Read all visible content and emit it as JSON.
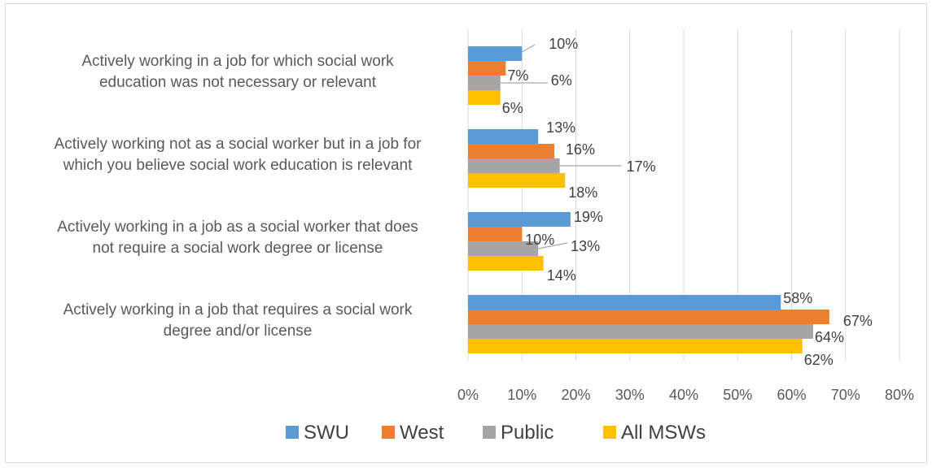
{
  "chart_data": {
    "type": "bar",
    "orientation": "horizontal",
    "categories": [
      [
        "Actively working in a job for which social work",
        "education was not necessary or relevant"
      ],
      [
        "Actively working not as a social worker but in a job for",
        "which you believe social work education is relevant"
      ],
      [
        "Actively working in a job as a social worker that does",
        "not require a social work degree or license"
      ],
      [
        "Actively working in a job that requires a social work",
        "degree and/or license"
      ]
    ],
    "series": [
      {
        "name": "SWU",
        "color": "#5b9bd5",
        "values": [
          10,
          13,
          19,
          58
        ],
        "labels": [
          "10%",
          "13%",
          "19%",
          "58%"
        ]
      },
      {
        "name": "West",
        "color": "#ed7d31",
        "values": [
          7,
          16,
          10,
          67
        ],
        "labels": [
          "7%",
          "16%",
          "10%",
          "67%"
        ]
      },
      {
        "name": "Public",
        "color": "#a5a5a5",
        "values": [
          6,
          17,
          13,
          64
        ],
        "labels": [
          "6%",
          "17%",
          "13%",
          "64%"
        ]
      },
      {
        "name": "All MSWs",
        "color": "#ffc000",
        "values": [
          6,
          18,
          14,
          62
        ],
        "labels": [
          "6%",
          "18%",
          "14%",
          "62%"
        ]
      }
    ],
    "xlim": [
      0,
      80
    ],
    "xticks": [
      "0%",
      "10%",
      "20%",
      "30%",
      "40%",
      "50%",
      "60%",
      "70%",
      "80%"
    ],
    "grid": true,
    "legend_position": "bottom"
  }
}
